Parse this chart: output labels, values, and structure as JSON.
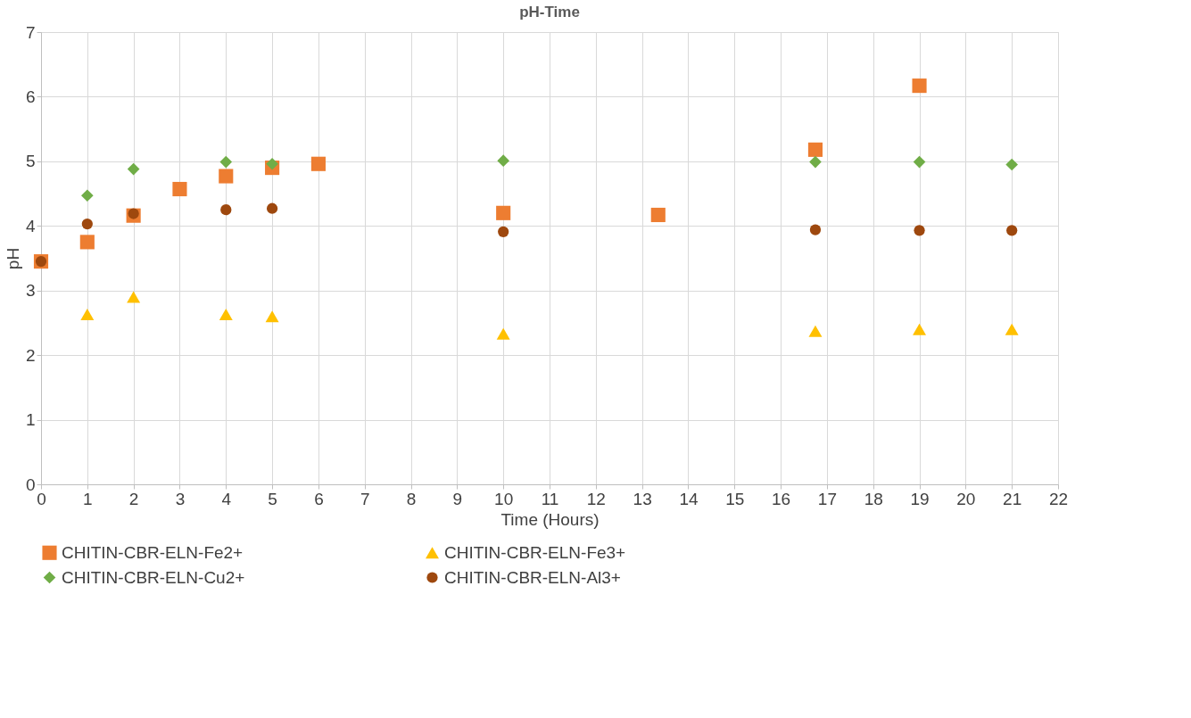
{
  "chart_data": {
    "type": "scatter",
    "title": "pH-Time",
    "xlabel": "Time (Hours)",
    "ylabel": "pH",
    "xlim": [
      0,
      22
    ],
    "xticks": [
      0,
      1,
      2,
      3,
      4,
      5,
      6,
      7,
      8,
      9,
      10,
      11,
      12,
      13,
      14,
      15,
      16,
      17,
      18,
      19,
      20,
      21,
      22
    ],
    "ylim": [
      0,
      7
    ],
    "yticks": [
      0,
      1,
      2,
      3,
      4,
      5,
      6,
      7
    ],
    "grid": true,
    "legend": "bottom",
    "series": [
      {
        "name": "CHITIN-CBR-ELN-Fe2+",
        "color": "#ed7d31",
        "marker": "square",
        "x": [
          0,
          1,
          2,
          3,
          4,
          5,
          6,
          10,
          13.35,
          16.75,
          19
        ],
        "values": [
          3.45,
          3.75,
          4.16,
          4.57,
          4.77,
          4.9,
          4.96,
          4.2,
          4.17,
          5.18,
          6.17
        ]
      },
      {
        "name": "CHITIN-CBR-ELN-Fe3+",
        "color": "#ffc000",
        "marker": "triangle",
        "x": [
          1,
          2,
          4,
          5,
          10,
          16.75,
          19,
          21
        ],
        "values": [
          2.63,
          2.9,
          2.63,
          2.6,
          2.33,
          2.37,
          2.4,
          2.4
        ]
      },
      {
        "name": "CHITIN-CBR-ELN-Cu2+",
        "color": "#70ad47",
        "marker": "diamond",
        "x": [
          1,
          2,
          4,
          5,
          10,
          16.75,
          19,
          21
        ],
        "values": [
          4.47,
          4.88,
          4.99,
          4.96,
          5.01,
          4.99,
          4.99,
          4.95
        ]
      },
      {
        "name": "CHITIN-CBR-ELN-Al3+",
        "color": "#9e480e",
        "marker": "circle",
        "x": [
          0,
          1,
          2,
          4,
          5,
          10,
          16.75,
          19,
          21
        ],
        "values": [
          3.45,
          4.03,
          4.19,
          4.25,
          4.27,
          3.91,
          3.94,
          3.93,
          3.93
        ]
      }
    ]
  }
}
